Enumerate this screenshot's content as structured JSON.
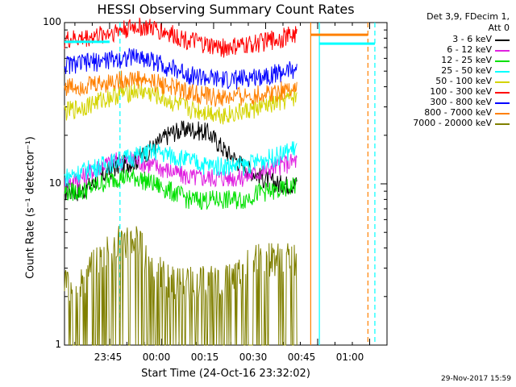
{
  "chart_data": {
    "type": "line",
    "title": "HESSI Observing Summary Count Rates",
    "xlabel": "Start Time (24-Oct-16 23:32:02)",
    "ylabel": "Count Rate (s⁻¹ detector⁻¹)",
    "yscale": "log",
    "ylim": [
      1,
      100
    ],
    "xlim_minutes": [
      0,
      93
    ],
    "x_ticks": [
      "23:45",
      "00:00",
      "00:15",
      "00:30",
      "00:45",
      "01:00"
    ],
    "y_ticks": [
      "100",
      "10",
      "1"
    ],
    "legend_header": [
      "Det 3,9, FDecim 1,",
      "Att 0"
    ],
    "series": [
      {
        "name": "3 - 6 keV",
        "color": "#000000",
        "values_sample": [
          9,
          9,
          11,
          13,
          14,
          17,
          21,
          22,
          21,
          16,
          13,
          11,
          10,
          10
        ]
      },
      {
        "name": "6 - 12 keV",
        "color": "#e020e0",
        "values_sample": [
          10,
          11,
          13,
          14,
          14,
          13,
          12,
          11,
          11,
          11,
          11,
          12,
          13,
          14
        ]
      },
      {
        "name": "12 - 25 keV",
        "color": "#00e000",
        "values_sample": [
          9,
          9,
          10,
          11,
          11,
          10,
          9,
          8,
          8,
          8,
          8,
          9,
          9,
          10
        ]
      },
      {
        "name": "25 - 50 keV",
        "color": "#00ffff",
        "values_sample": [
          11,
          12,
          13,
          14,
          15,
          16,
          15,
          14,
          13,
          13,
          13,
          14,
          15,
          17
        ]
      },
      {
        "name": "50 - 100 keV",
        "color": "#d4d400",
        "values_sample": [
          28,
          30,
          33,
          36,
          38,
          36,
          32,
          29,
          28,
          27,
          28,
          30,
          32,
          35
        ]
      },
      {
        "name": "100 - 300 keV",
        "color": "#ff0000",
        "values_sample": [
          78,
          80,
          84,
          90,
          95,
          92,
          85,
          78,
          72,
          70,
          72,
          76,
          80,
          86
        ]
      },
      {
        "name": "300 - 800 keV",
        "color": "#0000ff",
        "values_sample": [
          55,
          56,
          58,
          60,
          62,
          58,
          52,
          48,
          45,
          44,
          45,
          47,
          49,
          52
        ]
      },
      {
        "name": "800 - 7000 keV",
        "color": "#ff8000",
        "values_sample": [
          40,
          41,
          42,
          44,
          45,
          43,
          40,
          37,
          35,
          34,
          35,
          36,
          38,
          40
        ]
      },
      {
        "name": "7000 - 20000 keV",
        "color": "#808000",
        "values_sample": [
          2.5,
          2.5,
          3.5,
          4.5,
          4.5,
          3,
          2.5,
          2.5,
          2.5,
          2.5,
          3,
          3.5,
          3.5,
          3.5
        ]
      }
    ],
    "vertical_markers": [
      {
        "minute": 16,
        "style": "dashed",
        "color": "#00ffff"
      },
      {
        "minute": 71,
        "style": "solid",
        "color": "#ff8000"
      },
      {
        "minute": 73.5,
        "style": "solid",
        "color": "#00ffff"
      },
      {
        "minute": 87.5,
        "style": "dashed",
        "color": "#ff8000"
      },
      {
        "minute": 89.5,
        "style": "dashed",
        "color": "#00ffff"
      }
    ],
    "footer": "29-Nov-2017 15:59"
  }
}
